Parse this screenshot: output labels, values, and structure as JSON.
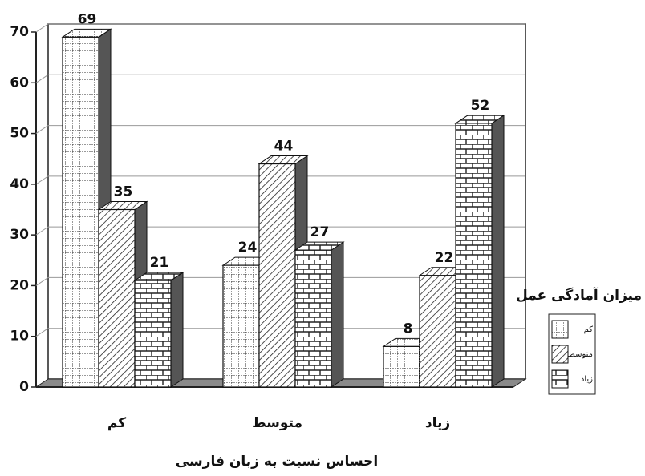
{
  "chart_data": {
    "type": "bar3d",
    "categories": [
      "کم",
      "متوسط",
      "زیاد"
    ],
    "series": [
      {
        "name": "کم",
        "values": [
          69,
          24,
          8
        ]
      },
      {
        "name": "متوسط",
        "values": [
          35,
          44,
          22
        ]
      },
      {
        "name": "زیاد",
        "values": [
          21,
          27,
          52
        ]
      }
    ],
    "ylim": [
      0,
      70
    ],
    "yticks": [
      0,
      10,
      20,
      30,
      40,
      50,
      60,
      70
    ],
    "grid": true,
    "x_label": "احساس نسبت به زبان فارسی",
    "legend_title": "میزان آمادگی عمل",
    "legend_position": "right"
  }
}
